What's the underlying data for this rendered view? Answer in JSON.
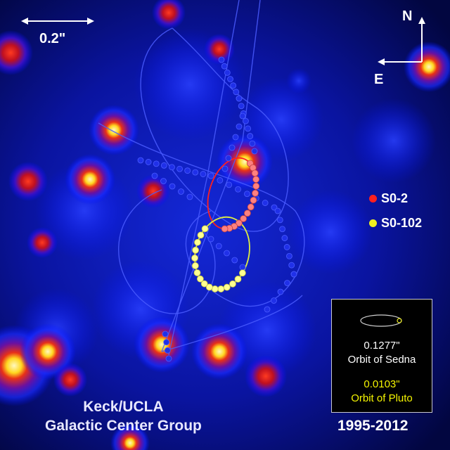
{
  "scale_bar": {
    "label": "0.2\""
  },
  "compass": {
    "north": "N",
    "east": "E"
  },
  "legend": [
    {
      "label": "S0-2",
      "color": "#ff2020"
    },
    {
      "label": "S0-102",
      "color": "#f0f020"
    }
  ],
  "inset": {
    "sedna_value": "0.1277\"",
    "sedna_label": "Orbit of Sedna",
    "pluto_value": "0.0103\"",
    "pluto_label": "Orbit of Pluto"
  },
  "credit": {
    "line1": "Keck/UCLA",
    "line2": "Galactic Center Group"
  },
  "date_range": "1995-2012",
  "colors": {
    "background": "#000010",
    "glow_outer": "#1e2cff",
    "glow_mid": "#c81414",
    "glow_core": "#ffe020",
    "orbit_line": "#4a5cff",
    "s02_points": "#ff8080",
    "s0102_points": "#ffff90"
  }
}
